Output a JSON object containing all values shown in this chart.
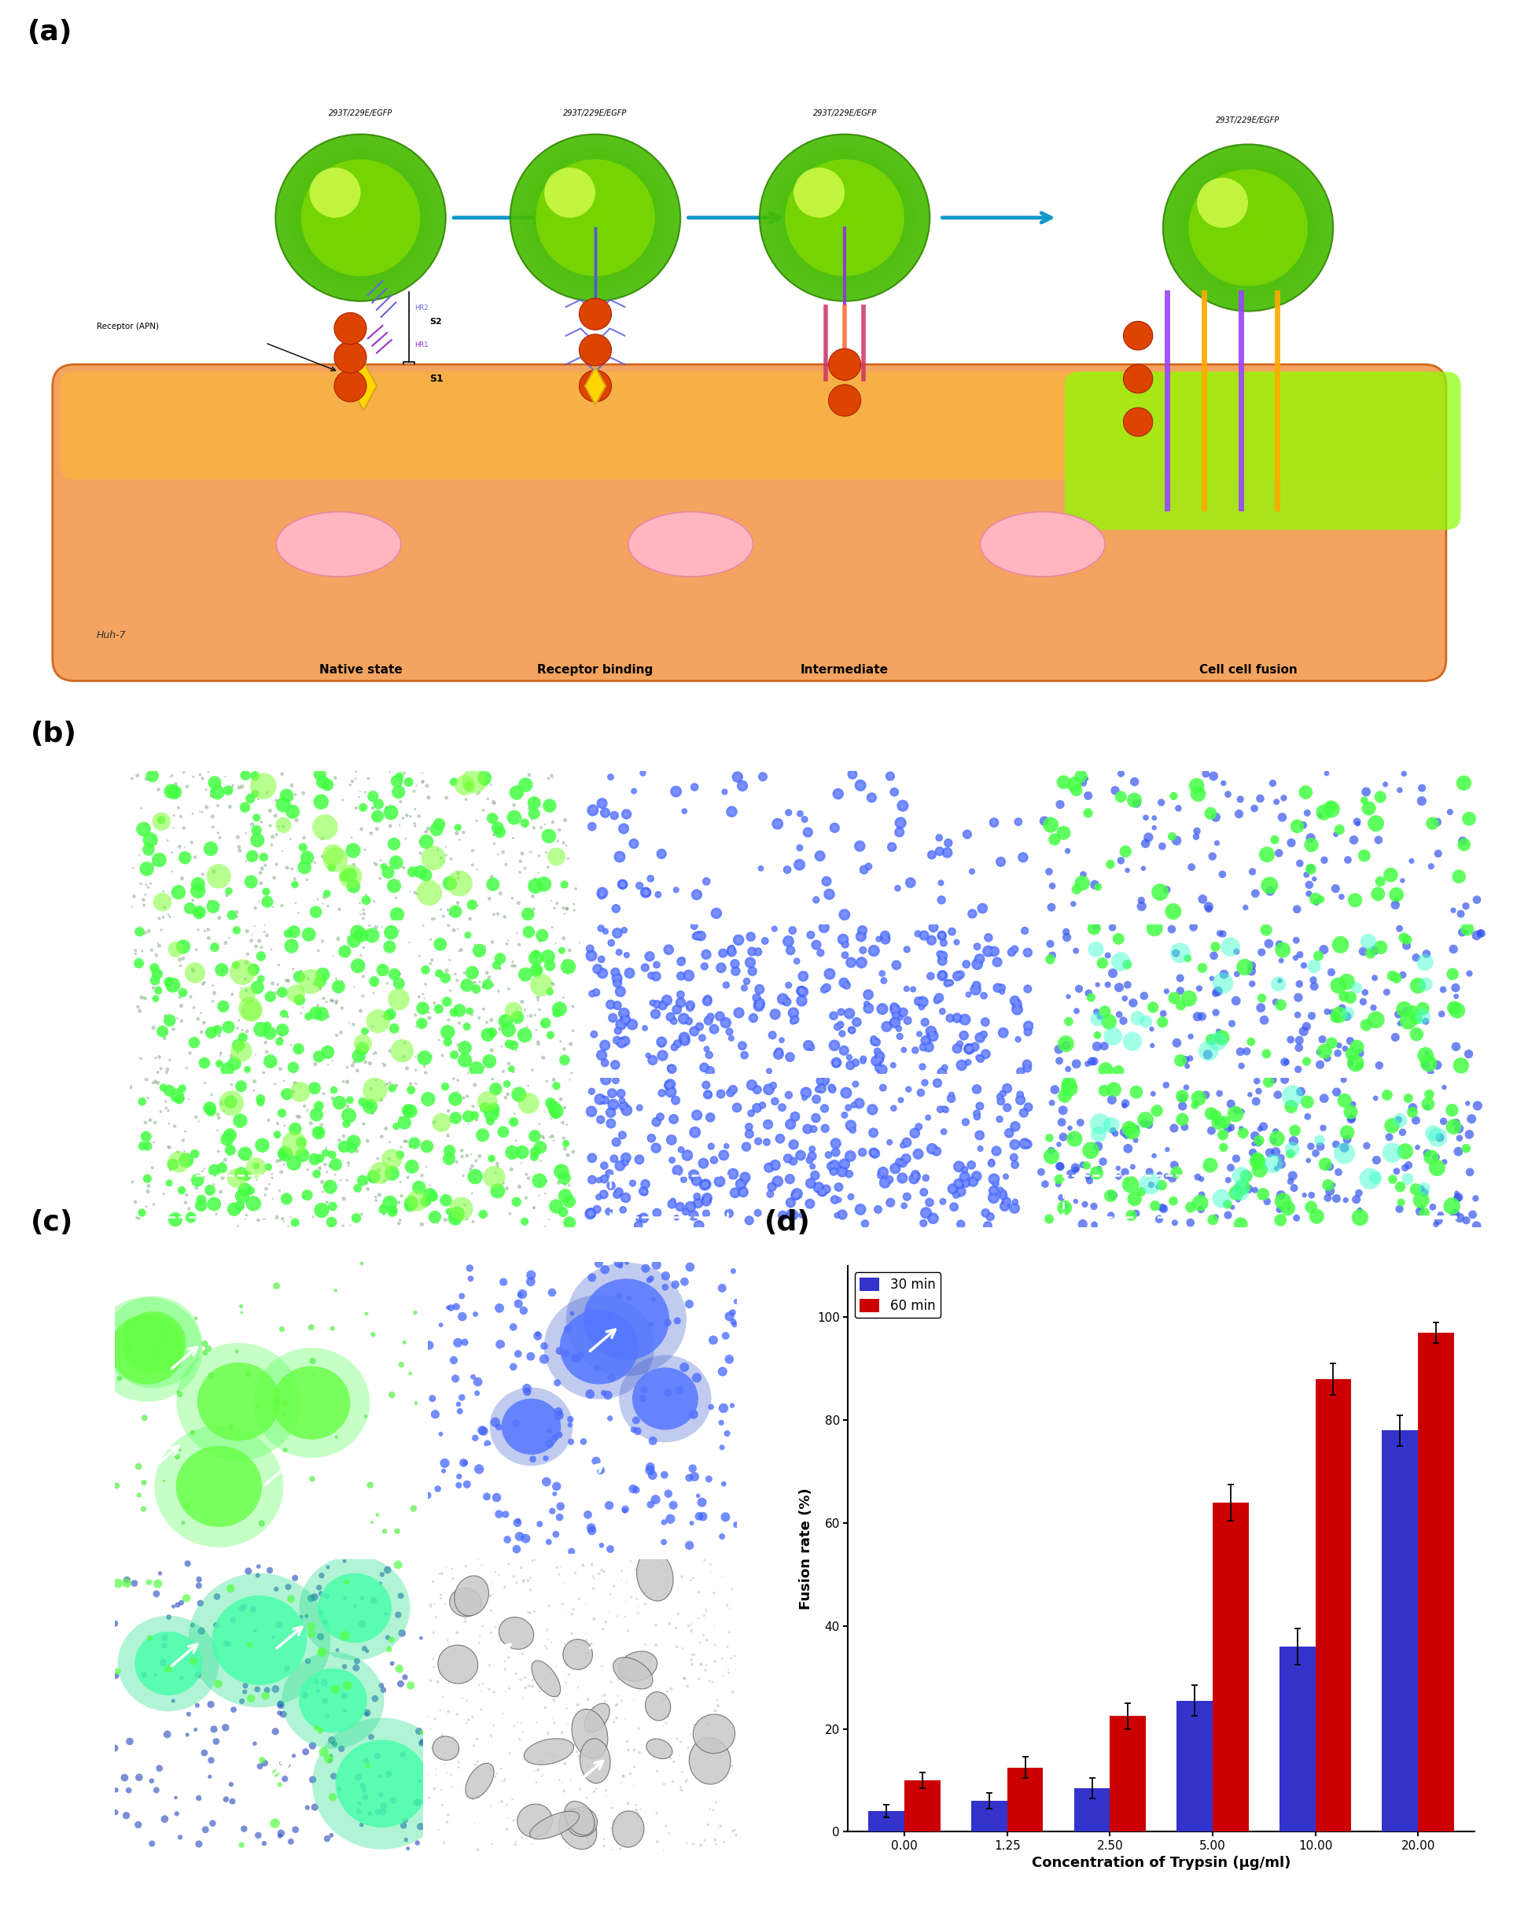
{
  "panel_label_fontsize": 26,
  "panel_label_style": "bold",
  "panel_label_color": "#000000",
  "bar_chart": {
    "categories": [
      "0.00",
      "1.25",
      "2.50",
      "5.00",
      "10.00",
      "20.00"
    ],
    "series_30min": [
      4.0,
      6.0,
      8.5,
      25.5,
      36.0,
      78.0
    ],
    "series_60min": [
      10.0,
      12.5,
      22.5,
      64.0,
      88.0,
      97.0
    ],
    "err_30min": [
      1.2,
      1.5,
      2.0,
      3.0,
      3.5,
      3.0
    ],
    "err_60min": [
      1.5,
      2.0,
      2.5,
      3.5,
      3.0,
      2.0
    ],
    "color_30min": "#3333CC",
    "color_60min": "#CC0000",
    "xlabel": "Concentration of Trypsin (μg/ml)",
    "ylabel": "Fusion rate (%)",
    "ylim": [
      0,
      110
    ],
    "yticks": [
      0,
      20,
      40,
      60,
      80,
      100
    ],
    "legend_30": "30 min",
    "legend_60": "60 min",
    "bar_width": 0.35,
    "axis_fontsize": 13,
    "tick_fontsize": 11,
    "legend_fontsize": 12
  },
  "background_color": "#FFFFFF"
}
